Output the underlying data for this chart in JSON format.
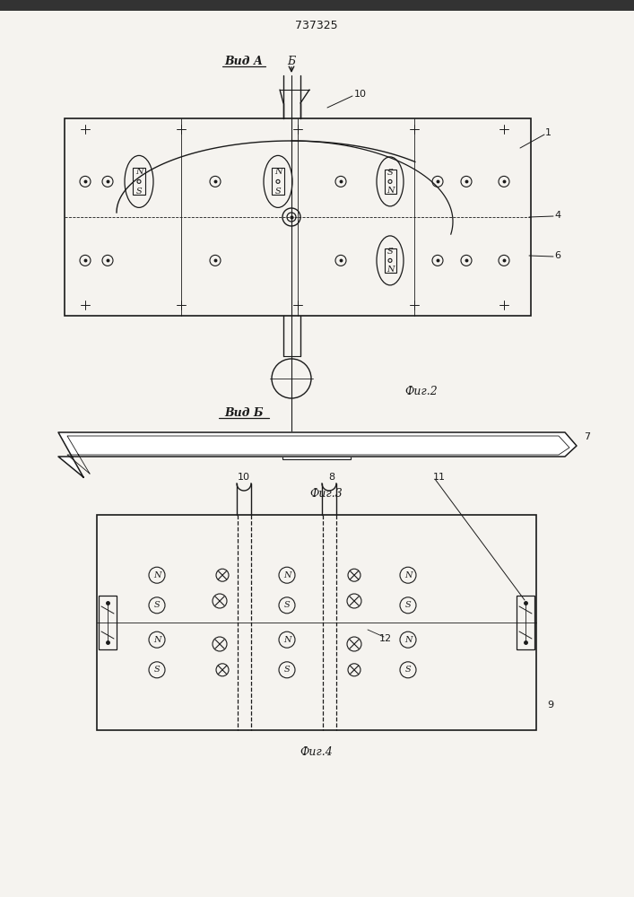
{
  "title": "737325",
  "bg_color": "#f5f3ef",
  "line_color": "#1a1a1a",
  "fig2_label": "Фиг.2",
  "fig3_label": "Фиг.3",
  "fig4_label": "Фиг.4",
  "vid_a_label": "Вид А",
  "vid_b_label": "Вид Б"
}
